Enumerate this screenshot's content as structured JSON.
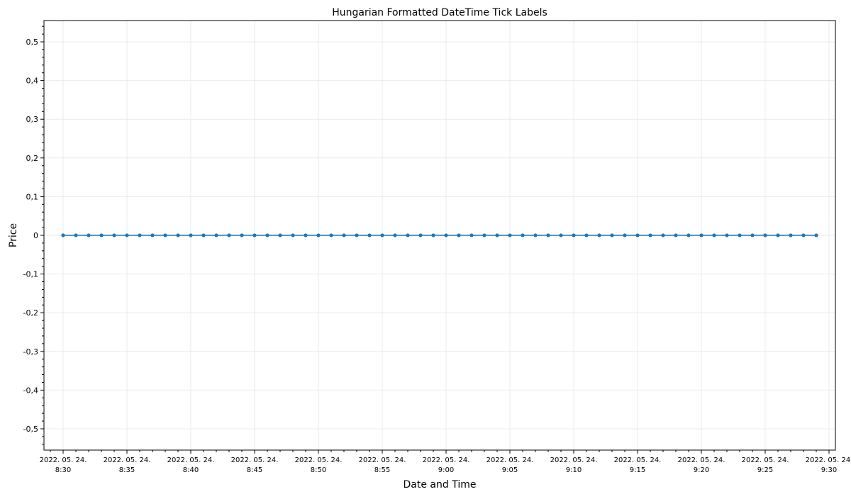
{
  "chart_data": {
    "type": "line",
    "title": "Hungarian Formatted DateTime Tick Labels",
    "xlabel": "Date and Time",
    "ylabel": "Price",
    "grid": true,
    "legend": "none",
    "x_axis": {
      "kind": "datetime",
      "range": [
        "2022-05-24T08:28:30",
        "2022-05-24T09:30:30"
      ],
      "ticks": [
        {
          "value": "2022-05-24T08:30",
          "line1": "2022. 05. 24.",
          "line2": "8:30"
        },
        {
          "value": "2022-05-24T08:35",
          "line1": "2022. 05. 24.",
          "line2": "8:35"
        },
        {
          "value": "2022-05-24T08:40",
          "line1": "2022. 05. 24.",
          "line2": "8:40"
        },
        {
          "value": "2022-05-24T08:45",
          "line1": "2022. 05. 24.",
          "line2": "8:45"
        },
        {
          "value": "2022-05-24T08:50",
          "line1": "2022. 05. 24.",
          "line2": "8:50"
        },
        {
          "value": "2022-05-24T08:55",
          "line1": "2022. 05. 24.",
          "line2": "8:55"
        },
        {
          "value": "2022-05-24T09:00",
          "line1": "2022. 05. 24.",
          "line2": "9:00"
        },
        {
          "value": "2022-05-24T09:05",
          "line1": "2022. 05. 24.",
          "line2": "9:05"
        },
        {
          "value": "2022-05-24T09:10",
          "line1": "2022. 05. 24.",
          "line2": "9:10"
        },
        {
          "value": "2022-05-24T09:15",
          "line1": "2022. 05. 24.",
          "line2": "9:15"
        },
        {
          "value": "2022-05-24T09:20",
          "line1": "2022. 05. 24.",
          "line2": "9:20"
        },
        {
          "value": "2022-05-24T09:25",
          "line1": "2022. 05. 24.",
          "line2": "9:25"
        },
        {
          "value": "2022-05-24T09:30",
          "line1": "2022. 05. 24.",
          "line2": "9:30"
        }
      ]
    },
    "y_axis": {
      "range": [
        -0.555,
        0.555
      ],
      "ticks": [
        {
          "value": 0.5,
          "label": "0,5"
        },
        {
          "value": 0.4,
          "label": "0,4"
        },
        {
          "value": 0.3,
          "label": "0,3"
        },
        {
          "value": 0.2,
          "label": "0,2"
        },
        {
          "value": 0.1,
          "label": "0,1"
        },
        {
          "value": 0,
          "label": "0"
        },
        {
          "value": -0.1,
          "label": "-0,1"
        },
        {
          "value": -0.2,
          "label": "-0,2"
        },
        {
          "value": -0.3,
          "label": "-0,3"
        },
        {
          "value": -0.4,
          "label": "-0,4"
        },
        {
          "value": -0.5,
          "label": "-0,5"
        }
      ]
    },
    "series": [
      {
        "color": "#1f77b4",
        "x": [
          "08:30",
          "08:31",
          "08:32",
          "08:33",
          "08:34",
          "08:35",
          "08:36",
          "08:37",
          "08:38",
          "08:39",
          "08:40",
          "08:41",
          "08:42",
          "08:43",
          "08:44",
          "08:45",
          "08:46",
          "08:47",
          "08:48",
          "08:49",
          "08:50",
          "08:51",
          "08:52",
          "08:53",
          "08:54",
          "08:55",
          "08:56",
          "08:57",
          "08:58",
          "08:59",
          "09:00",
          "09:01",
          "09:02",
          "09:03",
          "09:04",
          "09:05",
          "09:06",
          "09:07",
          "09:08",
          "09:09",
          "09:10",
          "09:11",
          "09:12",
          "09:13",
          "09:14",
          "09:15",
          "09:16",
          "09:17",
          "09:18",
          "09:19",
          "09:20",
          "09:21",
          "09:22",
          "09:23",
          "09:24",
          "09:25",
          "09:26",
          "09:27",
          "09:28",
          "09:29"
        ],
        "y": [
          0,
          0,
          0,
          0,
          0,
          0,
          0,
          0,
          0,
          0,
          0,
          0,
          0,
          0,
          0,
          0,
          0,
          0,
          0,
          0,
          0,
          0,
          0,
          0,
          0,
          0,
          0,
          0,
          0,
          0,
          0,
          0,
          0,
          0,
          0,
          0,
          0,
          0,
          0,
          0,
          0,
          0,
          0,
          0,
          0,
          0,
          0,
          0,
          0,
          0,
          0,
          0,
          0,
          0,
          0,
          0,
          0,
          0,
          0,
          0
        ]
      }
    ]
  }
}
